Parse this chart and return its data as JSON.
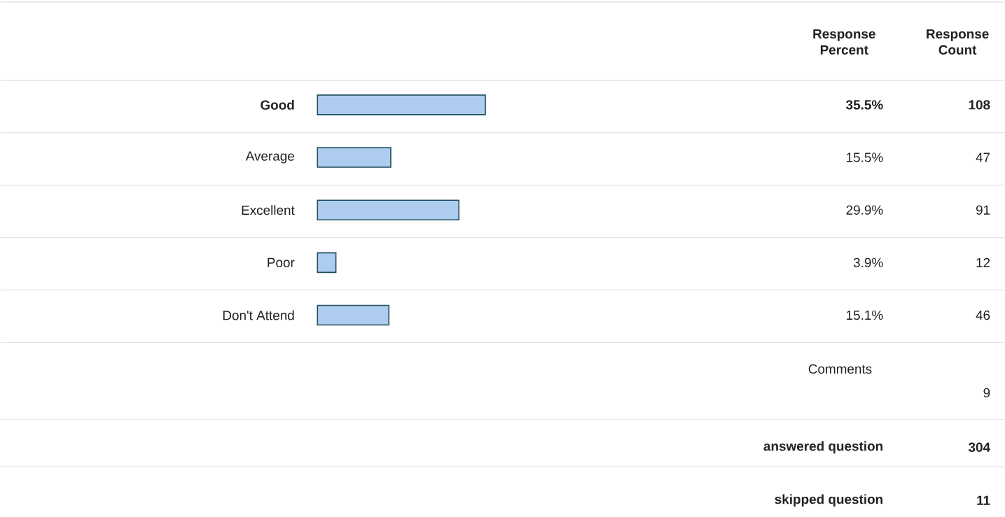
{
  "chart_data": {
    "type": "bar",
    "orientation": "horizontal",
    "categories": [
      "Good",
      "Average",
      "Excellent",
      "Poor",
      "Don't Attend"
    ],
    "values": [
      35.5,
      15.5,
      29.9,
      3.9,
      15.1
    ],
    "value_labels": [
      "35.5%",
      "15.5%",
      "29.9%",
      "3.9%",
      "15.1%"
    ],
    "color": "#aecbf0",
    "annotations": [
      "Response Percent",
      "Response Count",
      "108",
      "47",
      "91",
      "12",
      "46",
      "Comments",
      "9",
      "answered question",
      "304",
      "skipped question",
      "11"
    ]
  }
}
